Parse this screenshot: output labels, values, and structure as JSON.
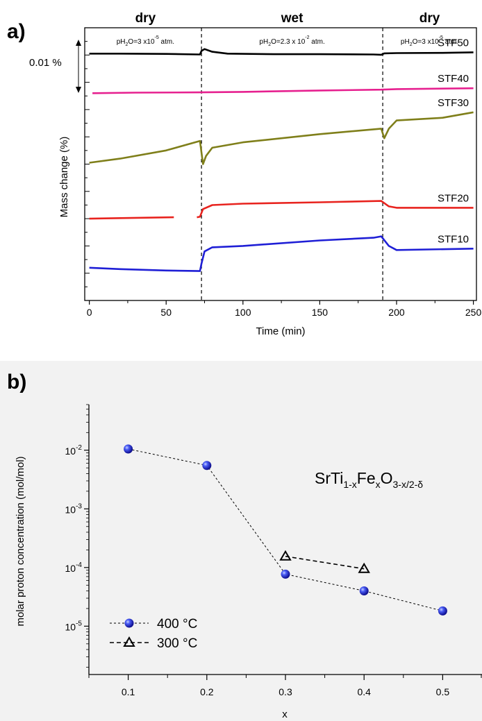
{
  "chart_data": [
    {
      "type": "line",
      "panel_label": "a)",
      "xlabel": "Time (min)",
      "ylabel": "Mass change (%)",
      "xlim": [
        -3,
        252
      ],
      "x_ticks": [
        0,
        50,
        100,
        150,
        200,
        250
      ],
      "ylim": [
        0,
        10
      ],
      "regions": [
        {
          "label": "dry",
          "condition": {
            "pre": "pH",
            "sub": "2",
            "mid": "O=3 x10",
            "sup": "-5",
            "post": " atm."
          },
          "x_range": [
            0,
            73
          ]
        },
        {
          "label": "wet",
          "condition": {
            "pre": "pH",
            "sub": "2",
            "mid": "O=2.3 x 10",
            "sup": "-2",
            "post": " atm."
          },
          "x_range": [
            73,
            191
          ]
        },
        {
          "label": "dry",
          "condition": {
            "pre": "pH",
            "sub": "2",
            "mid": "O=3 x10",
            "sup": "-5",
            "post": " atm."
          },
          "x_range": [
            191,
            252
          ]
        }
      ],
      "switch_times": [
        73,
        191
      ],
      "scale_bar_label": "0.01 %",
      "series": [
        {
          "name": "STF50",
          "color": "#000000",
          "x": [
            0,
            20,
            50,
            72,
            73,
            75,
            80,
            90,
            120,
            150,
            185,
            190,
            192,
            200,
            230,
            250
          ],
          "y": [
            9.05,
            9.05,
            9.04,
            9.02,
            9.15,
            9.22,
            9.12,
            9.05,
            9.03,
            9.03,
            9.02,
            9.01,
            9.06,
            9.07,
            9.08,
            9.1
          ]
        },
        {
          "name": "STF40",
          "color": "#e6208f",
          "x": [
            2,
            30,
            72,
            100,
            150,
            190,
            200,
            250
          ],
          "y": [
            7.6,
            7.62,
            7.63,
            7.65,
            7.7,
            7.73,
            7.75,
            7.78
          ]
        },
        {
          "name": "STF30",
          "color": "#7f7f1a",
          "x": [
            0,
            20,
            50,
            72,
            74,
            76,
            80,
            100,
            150,
            190,
            192,
            195,
            200,
            230,
            250
          ],
          "y": [
            5.05,
            5.2,
            5.5,
            5.85,
            5.0,
            5.3,
            5.6,
            5.8,
            6.1,
            6.3,
            5.95,
            6.3,
            6.6,
            6.7,
            6.9
          ]
        },
        {
          "name": "STF20",
          "color": "#e8231e",
          "x": [
            0,
            20,
            55,
            57,
            70,
            72,
            74,
            80,
            100,
            150,
            190,
            195,
            200,
            250
          ],
          "y": [
            3.0,
            3.02,
            3.05,
            null,
            3.05,
            3.07,
            3.35,
            3.5,
            3.55,
            3.6,
            3.65,
            3.45,
            3.4,
            3.4
          ]
        },
        {
          "name": "STF10",
          "color": "#1f1fd6",
          "x": [
            0,
            20,
            50,
            72,
            73,
            75,
            80,
            100,
            150,
            185,
            190,
            195,
            200,
            250
          ],
          "y": [
            1.2,
            1.15,
            1.1,
            1.08,
            1.35,
            1.8,
            1.95,
            2.0,
            2.2,
            2.3,
            2.35,
            2.0,
            1.85,
            1.9
          ]
        }
      ]
    },
    {
      "type": "scatter",
      "panel_label": "b)",
      "xlabel": "x",
      "ylabel": "molar proton concentration (mol/mol)",
      "xlim": [
        0.05,
        0.55
      ],
      "x_ticks": [
        0.1,
        0.2,
        0.3,
        0.4,
        0.5
      ],
      "y_scale": "log",
      "ylim": [
        1.5e-06,
        0.06
      ],
      "y_ticks": [
        {
          "base": "10",
          "exp": "-2",
          "value": 0.01
        },
        {
          "base": "10",
          "exp": "-3",
          "value": 0.001
        },
        {
          "base": "10",
          "exp": "-4",
          "value": 0.0001
        },
        {
          "base": "10",
          "exp": "-5",
          "value": 1e-05
        }
      ],
      "annotation": {
        "t1": "SrTi",
        "s1": "1-x",
        "t2": "Fe",
        "s2": "x",
        "t3": "O",
        "s3": "3-x/2-δ"
      },
      "legend_position": "bottom-left",
      "series": [
        {
          "name": "400 °C",
          "marker": "sphere",
          "color": "#2020e0",
          "x": [
            0.1,
            0.2,
            0.3,
            0.4,
            0.5
          ],
          "y": [
            0.0105,
            0.0055,
            7.7e-05,
            4e-05,
            1.82e-05
          ]
        },
        {
          "name": "300 °C",
          "marker": "open-triangle",
          "color": "#000000",
          "x": [
            0.3,
            0.4
          ],
          "y": [
            0.000155,
            9.5e-05
          ]
        }
      ]
    }
  ]
}
